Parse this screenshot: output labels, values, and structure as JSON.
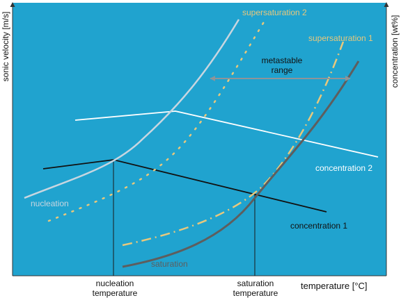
{
  "axes": {
    "y_left_label": "sonic velocity [m/s]",
    "y_right_label": "concentration [wt%]",
    "x_label": "temperature [°C]"
  },
  "curves": {
    "supersaturation_2": "supersaturation 2",
    "supersaturation_1": "supersaturation 1",
    "nucleation": "nucleation",
    "saturation": "saturation",
    "concentration_2": "concentration 2",
    "concentration_1": "concentration 1"
  },
  "metastable_range": {
    "line1": "metastable",
    "line2": "range"
  },
  "x_markers": {
    "nucleation_line1": "nucleation",
    "nucleation_line2": "temperature",
    "saturation_line1": "saturation",
    "saturation_line2": "temperature"
  },
  "colors": {
    "plot_background": "#20a3cf",
    "nucleation_curve": "#c8d6e0",
    "supersaturation_curve": "#e8c87c",
    "saturation_curve": "#5e5e5e",
    "concentration_2": "#ffffff",
    "concentration_1": "#111111",
    "arrow": "#9aa0a4"
  }
}
